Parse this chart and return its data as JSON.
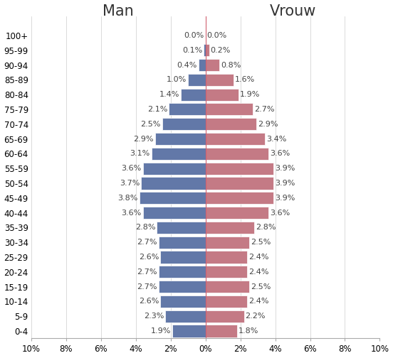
{
  "age_groups": [
    "0-4",
    "5-9",
    "10-14",
    "15-19",
    "20-24",
    "25-29",
    "30-34",
    "35-39",
    "40-44",
    "45-49",
    "50-54",
    "55-59",
    "60-64",
    "65-69",
    "70-74",
    "75-79",
    "80-84",
    "85-89",
    "90-94",
    "95-99",
    "100+"
  ],
  "male": [
    1.9,
    2.3,
    2.6,
    2.7,
    2.7,
    2.6,
    2.7,
    2.8,
    3.6,
    3.8,
    3.7,
    3.6,
    3.1,
    2.9,
    2.5,
    2.1,
    1.4,
    1.0,
    0.4,
    0.1,
    0.0
  ],
  "female": [
    1.8,
    2.2,
    2.4,
    2.5,
    2.4,
    2.4,
    2.5,
    2.8,
    3.6,
    3.9,
    3.9,
    3.9,
    3.6,
    3.4,
    2.9,
    2.7,
    1.9,
    1.6,
    0.8,
    0.2,
    0.0
  ],
  "male_color": "#6278a8",
  "female_color": "#c47a85",
  "center_line_color": "#d06070",
  "title_man": "Man",
  "title_vrouw": "Vrouw",
  "xlim": 10,
  "background_color": "#ffffff",
  "bar_height": 0.82,
  "label_fontsize": 8.0,
  "title_fontsize": 15
}
